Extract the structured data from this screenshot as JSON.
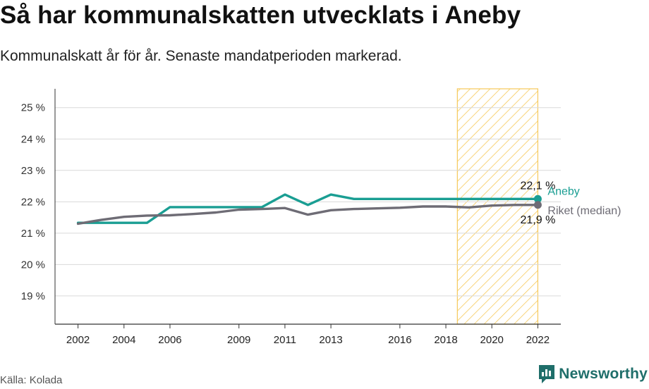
{
  "title": "Så har kommunalskatten utvecklats i Aneby",
  "subtitle": "Kommunalskatt år för år. Senaste mandatperioden markerad.",
  "source": "Källa: Kolada",
  "brand": "Newsworthy",
  "colors": {
    "aneby": "#1a9e93",
    "riket": "#6e6c75",
    "highlight_stroke": "#f6c95a",
    "grid": "#d9d9d9",
    "brand": "#1f6e6a"
  },
  "chart_data": {
    "type": "line",
    "x_ticks": [
      2002,
      2004,
      2006,
      2009,
      2011,
      2013,
      2016,
      2018,
      2020,
      2022
    ],
    "y_ticks": [
      {
        "value": 19,
        "label": "19 %"
      },
      {
        "value": 20,
        "label": "20 %"
      },
      {
        "value": 21,
        "label": "21 %"
      },
      {
        "value": 22,
        "label": "22 %"
      },
      {
        "value": 23,
        "label": "23 %"
      },
      {
        "value": 24,
        "label": "24 %"
      },
      {
        "value": 25,
        "label": "25 %"
      }
    ],
    "xlim": [
      2001.0,
      2023.0
    ],
    "ylim": [
      18.1,
      25.6
    ],
    "highlight_period": [
      2018.5,
      2022
    ],
    "series": [
      {
        "name": "Aneby",
        "key": "aneby",
        "x": [
          2002,
          2003,
          2004,
          2005,
          2006,
          2007,
          2008,
          2009,
          2010,
          2011,
          2012,
          2013,
          2014,
          2015,
          2016,
          2017,
          2018,
          2019,
          2020,
          2021,
          2022
        ],
        "values": [
          21.33,
          21.33,
          21.33,
          21.33,
          21.83,
          21.83,
          21.83,
          21.83,
          21.83,
          22.23,
          21.9,
          22.23,
          22.09,
          22.09,
          22.09,
          22.09,
          22.09,
          22.09,
          22.09,
          22.09,
          22.09
        ],
        "end_label": "22,1 %"
      },
      {
        "name": "Riket (median)",
        "key": "riket",
        "x": [
          2002,
          2003,
          2004,
          2005,
          2006,
          2007,
          2008,
          2009,
          2010,
          2011,
          2012,
          2013,
          2014,
          2015,
          2016,
          2017,
          2018,
          2019,
          2020,
          2021,
          2022
        ],
        "values": [
          21.3,
          21.42,
          21.52,
          21.56,
          21.57,
          21.61,
          21.66,
          21.75,
          21.77,
          21.8,
          21.59,
          21.73,
          21.77,
          21.79,
          21.81,
          21.85,
          21.85,
          21.82,
          21.88,
          21.9,
          21.9
        ],
        "end_label": "21,9 %"
      }
    ]
  }
}
